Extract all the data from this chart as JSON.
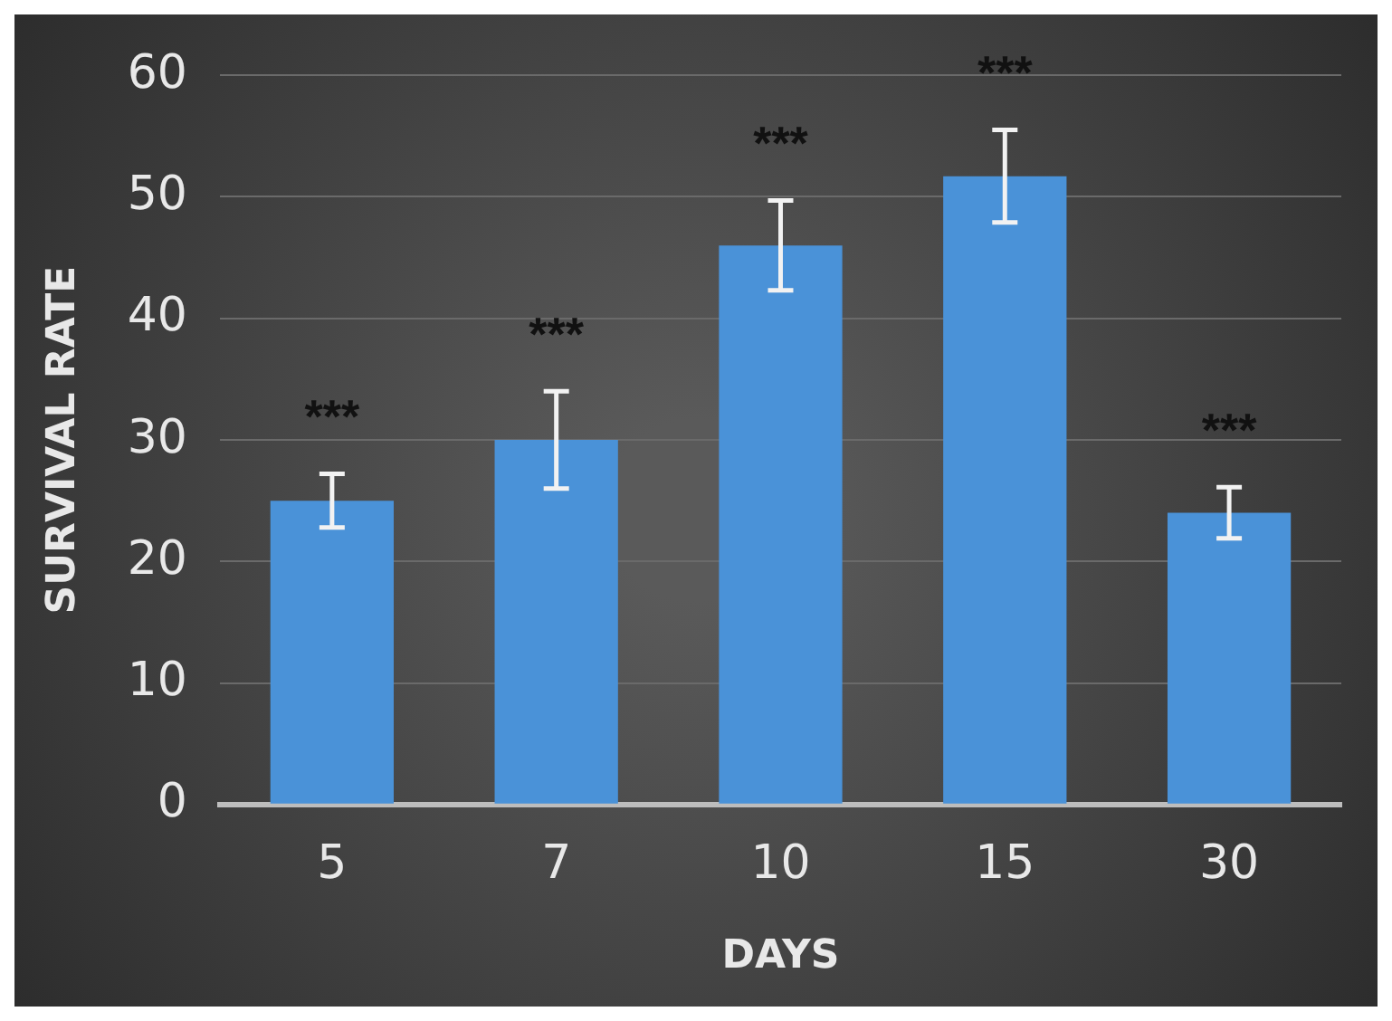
{
  "chart_data": {
    "type": "bar",
    "xlabel": "DAYS",
    "ylabel": "SURVIVAL RATE",
    "categories": [
      "5",
      "7",
      "10",
      "15",
      "30"
    ],
    "values": [
      25,
      30,
      46,
      51.7,
      24
    ],
    "errors": [
      2.2,
      4,
      3.7,
      3.8,
      2.1
    ],
    "color": "#4a92d8",
    "ylim": [
      0,
      60
    ],
    "yticks": [
      0,
      10,
      20,
      30,
      40,
      50,
      60
    ],
    "grid": "y",
    "annotations": [
      "***",
      "***",
      "***",
      "***",
      "***"
    ]
  }
}
